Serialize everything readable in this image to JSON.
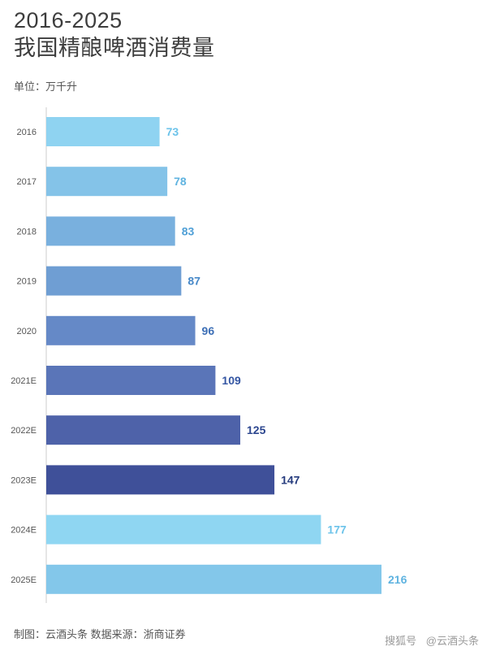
{
  "title": {
    "line1": "2016-2025",
    "line2": "我国精酿啤酒消费量"
  },
  "unit_label": "单位：万千升",
  "footer": "制图：云酒头条 数据来源：浙商证券",
  "watermark": {
    "brand": "搜狐号",
    "account": "@云酒头条"
  },
  "chart_data": {
    "type": "bar",
    "orientation": "horizontal",
    "title": "2016-2025 我国精酿啤酒消费量",
    "unit": "单位：万千升",
    "categories": [
      "2016",
      "2017",
      "2018",
      "2019",
      "2020",
      "2021E",
      "2022E",
      "2023E",
      "2024E",
      "2025E"
    ],
    "values": [
      73,
      78,
      83,
      87,
      96,
      109,
      125,
      147,
      177,
      216
    ],
    "xlim": [
      0,
      216
    ],
    "grid": false,
    "colors": [
      "#8fd3f1",
      "#84c3e8",
      "#79b0de",
      "#6f9ed3",
      "#6589c7",
      "#5a75b8",
      "#4e62a9",
      "#3f5099",
      "#8fd6f2",
      "#83c7ea"
    ],
    "label_colors": [
      "#6cc3ea",
      "#5fb3e0",
      "#4f9fd6",
      "#4688c8",
      "#3d6fb6",
      "#3456a3",
      "#2c468f",
      "#253b7d",
      "#6cc3ea",
      "#5fb3e0"
    ]
  }
}
